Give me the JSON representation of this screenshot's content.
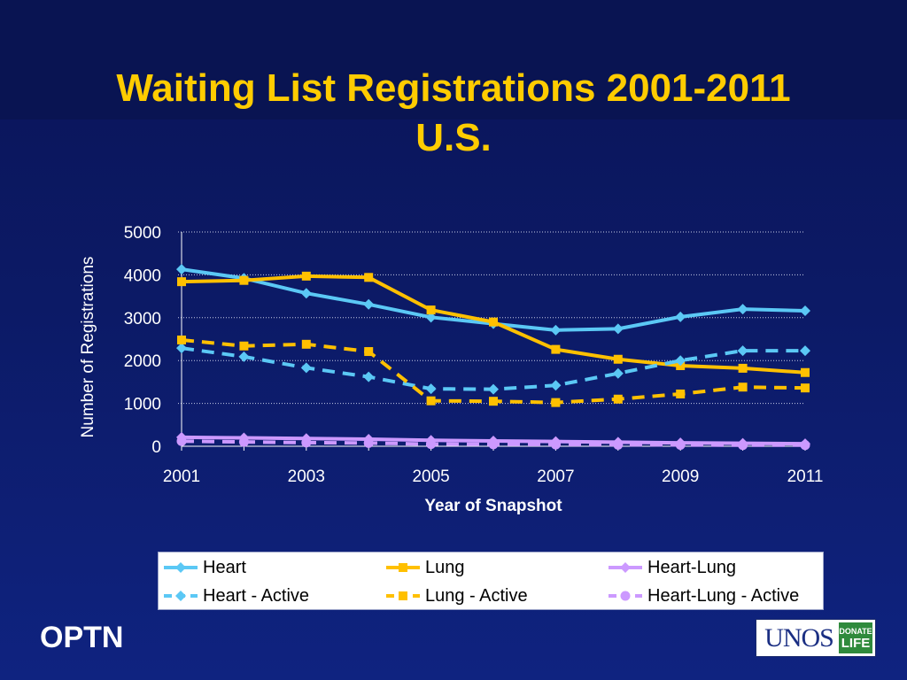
{
  "slide": {
    "title_line1": "Waiting List Registrations 2001-2011",
    "title_line2": "U.S.",
    "footer_left": "OPTN",
    "logo": {
      "text": "UNOS",
      "badge_top": "DONATE",
      "badge_bottom": "LIFE"
    }
  },
  "colors": {
    "background": "#0c1a66",
    "title": "#ffcc00",
    "heart": "#5bc8f5",
    "lung": "#ffc000",
    "heart_lung": "#cc99ff"
  },
  "chart_data": {
    "type": "line",
    "title": "Waiting List Registrations 2001-2011 U.S.",
    "xlabel": "Year of Snapshot",
    "ylabel": "Number of Registrations",
    "ylim": [
      0,
      5000
    ],
    "yticks": [
      0,
      1000,
      2000,
      3000,
      4000,
      5000
    ],
    "xticks": [
      2001,
      2003,
      2005,
      2007,
      2009,
      2011
    ],
    "x": [
      2001,
      2002,
      2003,
      2004,
      2005,
      2006,
      2007,
      2008,
      2009,
      2010,
      2011
    ],
    "grid": "horizontal",
    "legend_position": "bottom",
    "series": [
      {
        "name": "Heart",
        "color": "#5bc8f5",
        "style": "solid",
        "marker": "diamond",
        "values": [
          4130,
          3920,
          3570,
          3310,
          3010,
          2860,
          2710,
          2740,
          3020,
          3200,
          3160
        ]
      },
      {
        "name": "Lung",
        "color": "#ffc000",
        "style": "solid",
        "marker": "square",
        "values": [
          3840,
          3870,
          3970,
          3940,
          3180,
          2900,
          2260,
          2030,
          1880,
          1820,
          1720
        ]
      },
      {
        "name": "Heart-Lung",
        "color": "#cc99ff",
        "style": "solid",
        "marker": "diamond",
        "values": [
          210,
          195,
          180,
          165,
          140,
          125,
          110,
          95,
          80,
          70,
          60
        ]
      },
      {
        "name": "Heart - Active",
        "color": "#5bc8f5",
        "style": "dashed",
        "marker": "diamond",
        "values": [
          2290,
          2090,
          1830,
          1620,
          1340,
          1330,
          1420,
          1700,
          2000,
          2230,
          2230
        ]
      },
      {
        "name": "Lung - Active",
        "color": "#ffc000",
        "style": "dashed",
        "marker": "square",
        "values": [
          2480,
          2340,
          2380,
          2210,
          1060,
          1050,
          1020,
          1100,
          1220,
          1380,
          1360
        ]
      },
      {
        "name": "Heart-Lung - Active",
        "color": "#cc99ff",
        "style": "dashed",
        "marker": "circle",
        "values": [
          120,
          100,
          85,
          75,
          50,
          45,
          40,
          35,
          30,
          25,
          25
        ]
      }
    ]
  }
}
